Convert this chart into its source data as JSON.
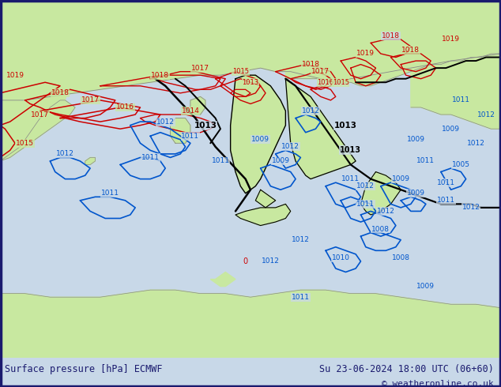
{
  "title_left": "Surface pressure [hPa] ECMWF",
  "title_right": "Su 23-06-2024 18:00 UTC (06+60)",
  "copyright": "© weatheronline.co.uk",
  "land_color": "#c8e8a0",
  "sea_color": "#c8d8e8",
  "bg_color": "#c8d8e8",
  "border_color": "#1a1a6e",
  "text_color": "#1a1a6e",
  "bar_color": "#d8d8d8",
  "fig_width": 6.34,
  "fig_height": 4.9,
  "dpi": 100
}
